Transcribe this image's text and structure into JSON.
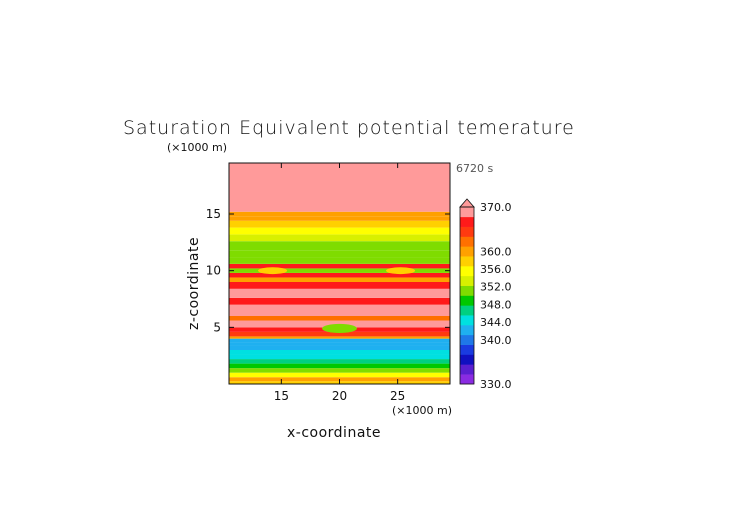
{
  "chart_data": {
    "type": "heatmap",
    "title": "Saturation Equivalent potential temerature",
    "time_label": "6720 s",
    "xlabel": "x-coordinate",
    "ylabel": "z-coordinate",
    "x_unit": "(×1000 m)",
    "y_unit": "(×1000 m)",
    "xlim": [
      10.5,
      29.5
    ],
    "ylim": [
      0,
      19.5
    ],
    "x_ticks": [
      "15",
      "20",
      "25"
    ],
    "y_ticks": [
      "5",
      "10",
      "15"
    ],
    "colorbar": {
      "min": 330.0,
      "max": 370.0,
      "labels": [
        "370.0",
        "360.0",
        "356.0",
        "352.0",
        "348.0",
        "344.0",
        "340.0",
        "330.0"
      ],
      "colors": [
        "#8a2be2",
        "#5a1fd0",
        "#1010c0",
        "#1a3be0",
        "#1f78e8",
        "#1fb0f0",
        "#00e0e0",
        "#00d080",
        "#00c800",
        "#7fdc00",
        "#d8f000",
        "#ffff00",
        "#ffd000",
        "#ffa000",
        "#ff7000",
        "#ff3a10",
        "#ff1a1a",
        "#ff9a9a"
      ]
    },
    "layers": [
      {
        "z": [
          0.0,
          0.25
        ],
        "theta": 358
      },
      {
        "z": [
          0.25,
          0.6
        ],
        "theta": 359
      },
      {
        "z": [
          0.6,
          1.0
        ],
        "theta": 356
      },
      {
        "z": [
          1.0,
          1.4
        ],
        "theta": 352
      },
      {
        "z": [
          1.4,
          1.8
        ],
        "theta": 349
      },
      {
        "z": [
          1.8,
          2.2
        ],
        "theta": 347
      },
      {
        "z": [
          2.2,
          2.6
        ],
        "theta": 345
      },
      {
        "z": [
          2.6,
          3.0
        ],
        "theta": 344
      },
      {
        "z": [
          3.0,
          3.4
        ],
        "theta": 343
      },
      {
        "z": [
          3.4,
          3.7
        ],
        "theta": 342
      },
      {
        "z": [
          3.7,
          4.0
        ],
        "theta": 343
      },
      {
        "z": [
          4.0,
          4.2
        ],
        "theta": 359
      },
      {
        "z": [
          4.2,
          4.6
        ],
        "theta": 364
      },
      {
        "z": [
          4.6,
          5.0
        ],
        "theta": 366
      },
      {
        "z": [
          5.0,
          5.6
        ],
        "theta": 368
      },
      {
        "z": [
          5.6,
          6.0
        ],
        "theta": 362
      },
      {
        "z": [
          6.0,
          7.0
        ],
        "theta": 368
      },
      {
        "z": [
          7.0,
          7.6
        ],
        "theta": 366
      },
      {
        "z": [
          7.6,
          8.4
        ],
        "theta": 368
      },
      {
        "z": [
          8.4,
          9.0
        ],
        "theta": 366
      },
      {
        "z": [
          9.0,
          9.4
        ],
        "theta": 360
      },
      {
        "z": [
          9.4,
          9.8
        ],
        "theta": 366
      },
      {
        "z": [
          9.8,
          10.2
        ],
        "theta": 350
      },
      {
        "z": [
          10.2,
          10.6
        ],
        "theta": 366
      },
      {
        "z": [
          10.6,
          11.2
        ],
        "theta": 352
      },
      {
        "z": [
          11.2,
          11.8
        ],
        "theta": 350
      },
      {
        "z": [
          11.8,
          12.6
        ],
        "theta": 352
      },
      {
        "z": [
          12.6,
          13.2
        ],
        "theta": 354
      },
      {
        "z": [
          13.2,
          13.8
        ],
        "theta": 356
      },
      {
        "z": [
          13.8,
          14.4
        ],
        "theta": 358
      },
      {
        "z": [
          14.4,
          14.8
        ],
        "theta": 360
      },
      {
        "z": [
          14.8,
          15.2
        ],
        "theta": 361
      },
      {
        "z": [
          15.2,
          19.5
        ],
        "theta": 368
      }
    ],
    "features": [
      {
        "x": [
          18.5,
          21.5
        ],
        "z": [
          4.5,
          5.3
        ],
        "theta": 350
      },
      {
        "x": [
          19.2,
          20.8
        ],
        "z": [
          4.7,
          5.1
        ],
        "theta": 352
      },
      {
        "x": [
          13.0,
          15.5
        ],
        "z": [
          9.7,
          10.3
        ],
        "theta": 358
      },
      {
        "x": [
          24.0,
          26.5
        ],
        "z": [
          9.7,
          10.3
        ],
        "theta": 358
      }
    ]
  }
}
